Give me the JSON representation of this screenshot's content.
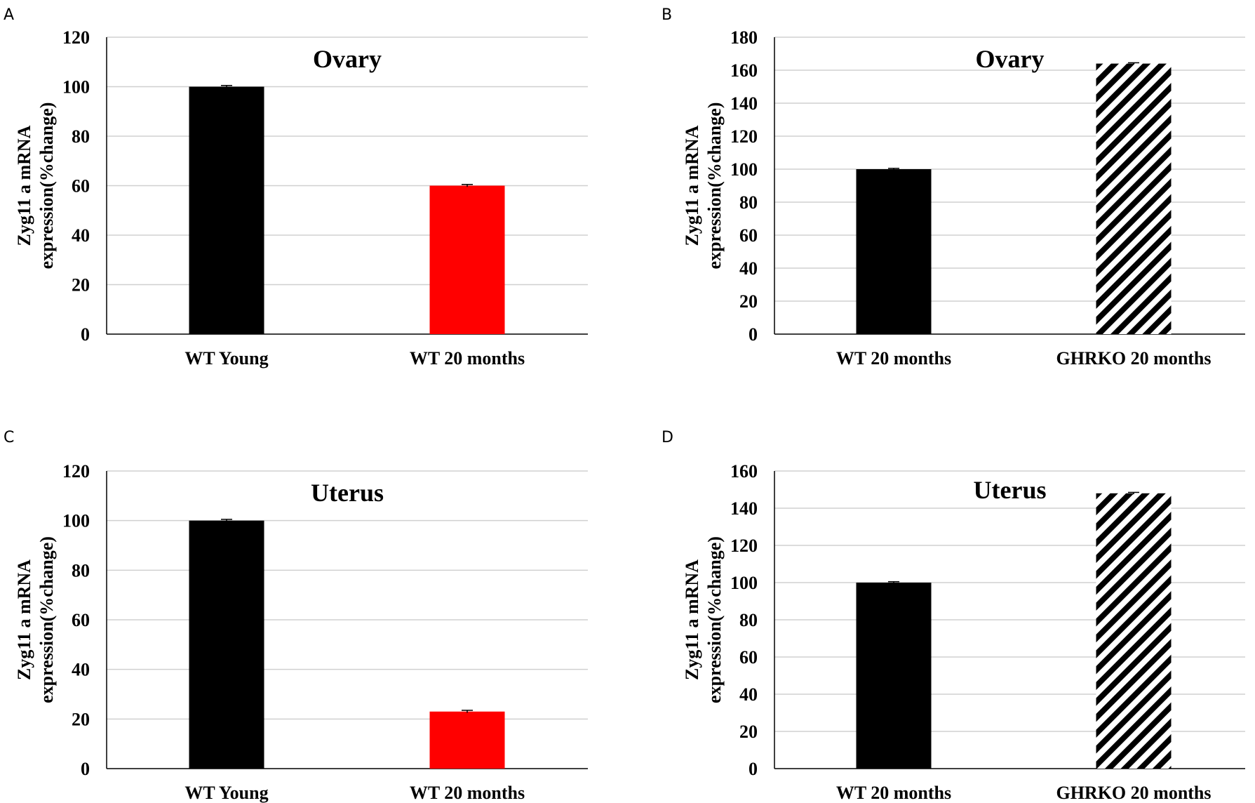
{
  "chart_data": [
    {
      "panel": "A",
      "type": "bar",
      "title": "Ovary",
      "ylabel": [
        "Zyg11 a mRNA",
        "expression(%change)"
      ],
      "xlabel": "",
      "categories": [
        "WT Young",
        "WT 20 months"
      ],
      "values": [
        100,
        60
      ],
      "errors": [
        0.5,
        0.5
      ],
      "bar_styles": [
        "solid",
        "solid"
      ],
      "bar_colors": [
        "#000000",
        "#ff0000"
      ],
      "ylim": [
        0,
        120
      ],
      "yticks": [
        0,
        20,
        40,
        60,
        80,
        100,
        120
      ],
      "grid": true
    },
    {
      "panel": "B",
      "type": "bar",
      "title": "Ovary",
      "ylabel": [
        "Zyg11 a mRNA",
        "expression(%change)"
      ],
      "xlabel": "",
      "categories": [
        "WT 20 months",
        "GHRKO 20 months"
      ],
      "values": [
        100,
        164
      ],
      "errors": [
        0.5,
        0.5
      ],
      "bar_styles": [
        "solid",
        "hatch"
      ],
      "bar_colors": [
        "#000000",
        "#000000"
      ],
      "ylim": [
        0,
        180
      ],
      "yticks": [
        0,
        20,
        40,
        60,
        80,
        100,
        120,
        140,
        160,
        180
      ],
      "grid": true
    },
    {
      "panel": "C",
      "type": "bar",
      "title": "Uterus",
      "ylabel": [
        "Zyg11 a mRNA",
        "expression(%change)"
      ],
      "xlabel": "",
      "categories": [
        "WT Young",
        "WT 20 months"
      ],
      "values": [
        100,
        23
      ],
      "errors": [
        0.5,
        0.5
      ],
      "bar_styles": [
        "solid",
        "solid"
      ],
      "bar_colors": [
        "#000000",
        "#ff0000"
      ],
      "ylim": [
        0,
        120
      ],
      "yticks": [
        0,
        20,
        40,
        60,
        80,
        100,
        120
      ],
      "grid": true
    },
    {
      "panel": "D",
      "type": "bar",
      "title": "Uterus",
      "ylabel": [
        "Zyg11 a mRNA",
        "expression(%change)"
      ],
      "xlabel": "",
      "categories": [
        "WT 20 months",
        "GHRKO 20 months"
      ],
      "values": [
        100,
        148
      ],
      "errors": [
        0.5,
        0.5
      ],
      "bar_styles": [
        "solid",
        "hatch"
      ],
      "bar_colors": [
        "#000000",
        "#000000"
      ],
      "ylim": [
        0,
        160
      ],
      "yticks": [
        0,
        20,
        40,
        60,
        80,
        100,
        120,
        140,
        160
      ],
      "grid": true
    }
  ]
}
